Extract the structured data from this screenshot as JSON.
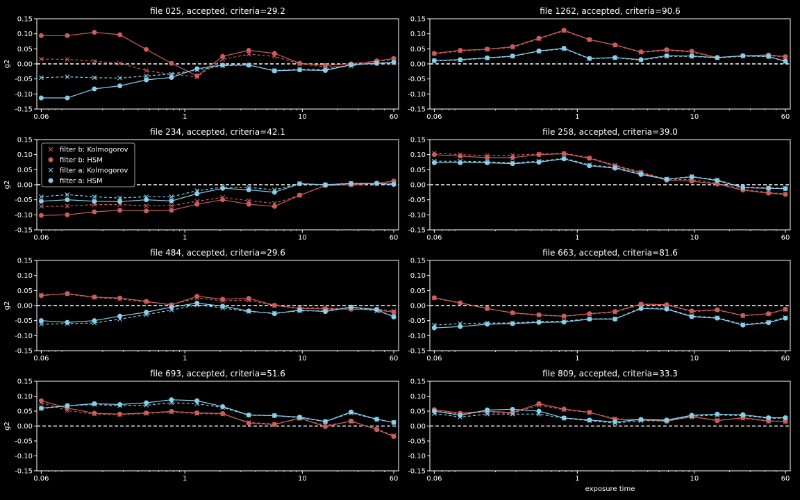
{
  "chart_data": {
    "type": "line",
    "x": [
      0.06,
      0.1,
      0.17,
      0.28,
      0.47,
      0.77,
      1.27,
      2.1,
      3.5,
      5.8,
      9.5,
      15.7,
      26,
      43,
      60
    ],
    "xlim": [
      0.055,
      66
    ],
    "xscale": "log",
    "xticks": [
      {
        "value": 0.06,
        "label": "0.06"
      },
      {
        "value": 1,
        "label": "1"
      },
      {
        "value": 10,
        "label": "10"
      },
      {
        "value": 60,
        "label": "60"
      }
    ],
    "ylim": [
      -0.15,
      0.15
    ],
    "yticks": [
      "0.15",
      "0.10",
      "0.05",
      "0.00",
      "-0.05",
      "-0.10",
      "-0.15"
    ],
    "ylabel": "g2",
    "xlabel": "exposure time",
    "zero_line": true,
    "colors": {
      "filter_b": "#cd5c5c",
      "filter_a": "#87ceeb",
      "background": "#000000",
      "axes": "#ffffff"
    },
    "legend": {
      "placement": "upper-left",
      "entries": [
        "filter b: Kolmogorov",
        "filter b: HSM",
        "filter a: Kolmogorov",
        "filter a: HSM"
      ]
    },
    "panels": [
      {
        "title": "file 025, accepted, criteria=29.2",
        "series": [
          {
            "name": "filter b: Kolmogorov",
            "values": [
              0.016,
              0.015,
              0.009,
              0.002,
              -0.022,
              -0.035,
              -0.043,
              0.015,
              0.032,
              0.025,
              0.0,
              -0.01,
              -0.008,
              0.008,
              0.015
            ]
          },
          {
            "name": "filter b: HSM",
            "values": [
              0.094,
              0.094,
              0.105,
              0.097,
              0.048,
              0.002,
              -0.04,
              0.025,
              0.045,
              0.035,
              0.002,
              -0.005,
              0.0,
              0.01,
              0.018
            ]
          },
          {
            "name": "filter a: Kolmogorov",
            "values": [
              -0.046,
              -0.043,
              -0.046,
              -0.047,
              -0.04,
              -0.034,
              -0.02,
              -0.006,
              -0.004,
              -0.022,
              -0.018,
              -0.018,
              -0.003,
              0.002,
              0.004
            ]
          },
          {
            "name": "filter a: HSM",
            "values": [
              -0.113,
              -0.113,
              -0.083,
              -0.073,
              -0.053,
              -0.045,
              -0.016,
              -0.004,
              -0.004,
              -0.023,
              -0.02,
              -0.022,
              -0.003,
              0.002,
              0.005
            ]
          }
        ]
      },
      {
        "title": "file 1262, accepted, criteria=90.6",
        "series": [
          {
            "name": "filter b: Kolmogorov",
            "values": [
              0.033,
              0.043,
              0.048,
              0.055,
              0.083,
              0.11,
              0.08,
              0.062,
              0.038,
              0.045,
              0.04,
              0.02,
              0.025,
              0.027,
              0.023
            ]
          },
          {
            "name": "filter b: HSM",
            "values": [
              0.035,
              0.045,
              0.049,
              0.057,
              0.085,
              0.112,
              0.081,
              0.063,
              0.04,
              0.047,
              0.042,
              0.021,
              0.027,
              0.03,
              0.024
            ]
          },
          {
            "name": "filter a: Kolmogorov",
            "values": [
              0.01,
              0.013,
              0.019,
              0.025,
              0.042,
              0.05,
              0.017,
              0.02,
              0.013,
              0.025,
              0.025,
              0.02,
              0.026,
              0.024,
              0.008
            ]
          },
          {
            "name": "filter a: HSM",
            "values": [
              0.011,
              0.014,
              0.02,
              0.026,
              0.043,
              0.052,
              0.018,
              0.021,
              0.014,
              0.027,
              0.026,
              0.021,
              0.027,
              0.025,
              0.009
            ]
          }
        ]
      },
      {
        "title": "file 234, accepted, criteria=42.1",
        "legend": true,
        "series": [
          {
            "name": "filter b: Kolmogorov",
            "values": [
              -0.072,
              -0.071,
              -0.066,
              -0.066,
              -0.07,
              -0.07,
              -0.055,
              -0.042,
              -0.053,
              -0.062,
              -0.035,
              -0.002,
              0.0,
              0.005,
              0.01
            ]
          },
          {
            "name": "filter b: HSM",
            "values": [
              -0.102,
              -0.1,
              -0.09,
              -0.085,
              -0.087,
              -0.085,
              -0.065,
              -0.05,
              -0.065,
              -0.072,
              -0.035,
              -0.003,
              0.0,
              0.005,
              0.012
            ]
          },
          {
            "name": "filter a: Kolmogorov",
            "values": [
              -0.04,
              -0.033,
              -0.04,
              -0.044,
              -0.04,
              -0.04,
              -0.02,
              -0.008,
              -0.009,
              -0.017,
              0.004,
              0.0,
              0.005,
              0.004,
              0.003
            ]
          },
          {
            "name": "filter a: HSM",
            "values": [
              -0.055,
              -0.05,
              -0.055,
              -0.056,
              -0.05,
              -0.054,
              -0.03,
              -0.012,
              -0.017,
              -0.025,
              0.003,
              0.0,
              0.004,
              0.004,
              0.001
            ]
          }
        ]
      },
      {
        "title": "file 258, accepted, criteria=39.0",
        "series": [
          {
            "name": "filter b: Kolmogorov",
            "values": [
              0.105,
              0.1,
              0.097,
              0.098,
              0.102,
              0.105,
              0.09,
              0.065,
              0.042,
              0.018,
              0.017,
              0.005,
              -0.015,
              -0.026,
              -0.03
            ]
          },
          {
            "name": "filter b: HSM",
            "values": [
              0.1,
              0.095,
              0.09,
              0.09,
              0.1,
              0.103,
              0.088,
              0.062,
              0.04,
              0.015,
              0.012,
              0.002,
              -0.018,
              -0.028,
              -0.032
            ]
          },
          {
            "name": "filter a: Kolmogorov",
            "values": [
              0.078,
              0.078,
              0.076,
              0.073,
              0.078,
              0.088,
              0.066,
              0.057,
              0.036,
              0.019,
              0.027,
              0.016,
              -0.008,
              -0.01,
              -0.012
            ]
          },
          {
            "name": "filter a: HSM",
            "values": [
              0.073,
              0.073,
              0.073,
              0.07,
              0.075,
              0.086,
              0.063,
              0.055,
              0.034,
              0.018,
              0.026,
              0.014,
              -0.01,
              -0.012,
              -0.013
            ]
          }
        ]
      },
      {
        "title": "file 484, accepted, criteria=29.6",
        "series": [
          {
            "name": "filter b: Kolmogorov",
            "values": [
              0.036,
              0.038,
              0.027,
              0.022,
              0.012,
              0.003,
              0.025,
              0.016,
              0.018,
              0.0,
              -0.008,
              -0.008,
              -0.012,
              -0.012,
              -0.018
            ]
          },
          {
            "name": "filter b: HSM",
            "values": [
              0.033,
              0.04,
              0.028,
              0.025,
              0.014,
              0.002,
              0.031,
              0.021,
              0.024,
              0.001,
              -0.01,
              -0.011,
              -0.012,
              -0.014,
              -0.022
            ]
          },
          {
            "name": "filter a: Kolmogorov",
            "values": [
              -0.062,
              -0.06,
              -0.058,
              -0.045,
              -0.03,
              -0.015,
              0.002,
              -0.008,
              -0.02,
              -0.025,
              -0.018,
              -0.017,
              -0.005,
              -0.018,
              -0.035
            ]
          },
          {
            "name": "filter a: HSM",
            "values": [
              -0.05,
              -0.056,
              -0.05,
              -0.035,
              -0.022,
              -0.005,
              0.008,
              -0.002,
              -0.018,
              -0.027,
              -0.015,
              -0.02,
              -0.005,
              -0.013,
              -0.038
            ]
          }
        ]
      },
      {
        "title": "file 663, accepted, criteria=81.6",
        "series": [
          {
            "name": "filter b: Kolmogorov",
            "values": [
              0.025,
              0.008,
              -0.01,
              -0.025,
              -0.032,
              -0.036,
              -0.028,
              -0.022,
              0.004,
              0.002,
              -0.02,
              -0.015,
              -0.034,
              -0.028,
              -0.013
            ]
          },
          {
            "name": "filter b: HSM",
            "values": [
              0.026,
              0.009,
              -0.01,
              -0.024,
              -0.031,
              -0.035,
              -0.027,
              -0.02,
              0.005,
              0.003,
              -0.018,
              -0.014,
              -0.033,
              -0.027,
              -0.012
            ]
          },
          {
            "name": "filter a: Kolmogorov",
            "values": [
              -0.065,
              -0.06,
              -0.058,
              -0.058,
              -0.053,
              -0.052,
              -0.044,
              -0.044,
              -0.008,
              -0.01,
              -0.035,
              -0.04,
              -0.063,
              -0.055,
              -0.04
            ]
          },
          {
            "name": "filter a: HSM",
            "values": [
              -0.074,
              -0.07,
              -0.062,
              -0.06,
              -0.056,
              -0.055,
              -0.045,
              -0.045,
              -0.01,
              -0.012,
              -0.037,
              -0.042,
              -0.065,
              -0.057,
              -0.042
            ]
          }
        ]
      },
      {
        "title": "file 693, accepted, criteria=51.6",
        "series": [
          {
            "name": "filter b: Kolmogorov",
            "values": [
              0.078,
              0.052,
              0.04,
              0.038,
              0.042,
              0.047,
              0.042,
              0.04,
              0.012,
              0.007,
              0.025,
              0.002,
              0.015,
              -0.01,
              -0.032
            ]
          },
          {
            "name": "filter b: HSM",
            "values": [
              0.085,
              0.06,
              0.043,
              0.04,
              0.044,
              0.049,
              0.044,
              0.042,
              0.01,
              0.005,
              0.027,
              -0.002,
              0.017,
              -0.012,
              -0.035
            ]
          },
          {
            "name": "filter a: Kolmogorov",
            "values": [
              0.058,
              0.068,
              0.072,
              0.068,
              0.07,
              0.078,
              0.075,
              0.062,
              0.036,
              0.035,
              0.028,
              0.015,
              0.044,
              0.022,
              0.012
            ]
          },
          {
            "name": "filter a: HSM",
            "values": [
              0.06,
              0.068,
              0.075,
              0.072,
              0.078,
              0.088,
              0.085,
              0.065,
              0.037,
              0.035,
              0.03,
              0.015,
              0.047,
              0.023,
              0.012
            ]
          }
        ]
      },
      {
        "title": "file 809, accepted, criteria=33.3",
        "series": [
          {
            "name": "filter b: Kolmogorov",
            "values": [
              0.052,
              0.04,
              0.048,
              0.042,
              0.07,
              0.055,
              0.045,
              0.025,
              0.02,
              0.018,
              0.03,
              0.02,
              0.026,
              0.016,
              0.015
            ]
          },
          {
            "name": "filter b: HSM",
            "values": [
              0.055,
              0.043,
              0.05,
              0.045,
              0.075,
              0.057,
              0.046,
              0.022,
              0.022,
              0.016,
              0.032,
              0.018,
              0.028,
              0.017,
              0.016
            ]
          },
          {
            "name": "filter a: Kolmogorov",
            "values": [
              0.042,
              0.03,
              0.04,
              0.04,
              0.04,
              0.026,
              0.018,
              0.01,
              0.018,
              0.018,
              0.033,
              0.037,
              0.035,
              0.026,
              0.026
            ]
          },
          {
            "name": "filter a: HSM",
            "values": [
              0.05,
              0.036,
              0.054,
              0.056,
              0.05,
              0.027,
              0.02,
              0.014,
              0.022,
              0.02,
              0.036,
              0.04,
              0.038,
              0.028,
              0.028
            ]
          }
        ]
      }
    ]
  }
}
